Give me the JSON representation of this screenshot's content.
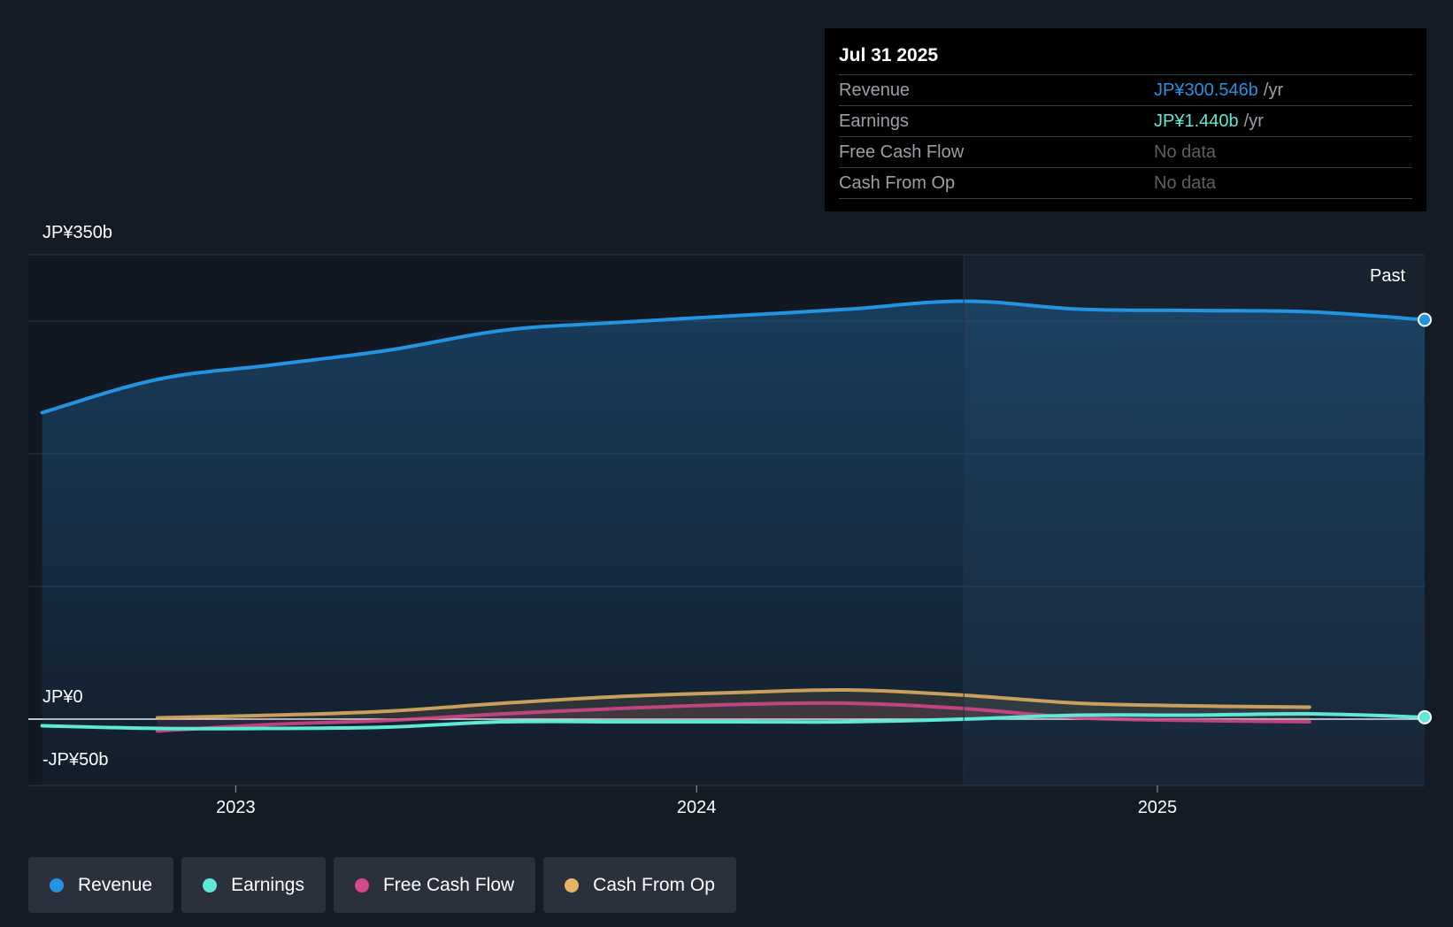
{
  "tooltip": {
    "date": "Jul 31 2025",
    "rows": [
      {
        "name": "Revenue",
        "value": "JP¥300.546b",
        "unit": "/yr",
        "color": "#2394df"
      },
      {
        "name": "Earnings",
        "value": "JP¥1.440b",
        "unit": "/yr",
        "color": "#5ee8d5"
      },
      {
        "name": "Free Cash Flow",
        "value": "No data",
        "unit": "",
        "color": "#5b6066"
      },
      {
        "name": "Cash From Op",
        "value": "No data",
        "unit": "",
        "color": "#5b6066"
      }
    ]
  },
  "past_label": "Past",
  "chart_data": {
    "type": "area",
    "title": "",
    "xlabel": "",
    "ylabel": "",
    "ylim": [
      -50,
      350
    ],
    "y_tick_labels": [
      {
        "value": 350,
        "label": "JP¥350b"
      },
      {
        "value": 0,
        "label": "JP¥0"
      },
      {
        "value": -50,
        "label": "-JP¥50b"
      }
    ],
    "gridlines": [
      350,
      300,
      200,
      100,
      0,
      -50
    ],
    "xlim": [
      2022.55,
      2025.58
    ],
    "x_ticks": [
      {
        "value": 2023.0,
        "label": "2023"
      },
      {
        "value": 2024.0,
        "label": "2024"
      },
      {
        "value": 2025.0,
        "label": "2025"
      }
    ],
    "past_start": 2024.58,
    "series": [
      {
        "name": "Revenue",
        "color": "#2394df",
        "fill": true,
        "end_marker": true,
        "x": [
          2022.58,
          2022.83,
          2023.08,
          2023.33,
          2023.58,
          2023.83,
          2024.08,
          2024.33,
          2024.58,
          2024.83,
          2025.08,
          2025.33,
          2025.58
        ],
        "y": [
          231,
          256,
          267,
          278,
          293,
          299,
          304,
          309,
          315,
          309,
          308,
          307,
          301
        ]
      },
      {
        "name": "Earnings",
        "color": "#5ee8d5",
        "fill": false,
        "end_marker": true,
        "x": [
          2022.58,
          2022.83,
          2023.08,
          2023.33,
          2023.58,
          2023.83,
          2024.08,
          2024.33,
          2024.58,
          2024.83,
          2025.08,
          2025.33,
          2025.58
        ],
        "y": [
          -5,
          -7,
          -7,
          -6,
          -2,
          -2,
          -2,
          -2,
          0,
          3,
          3,
          4,
          1.4
        ]
      },
      {
        "name": "Free Cash Flow",
        "color": "#d6498a",
        "fill": false,
        "end_marker": false,
        "x": [
          2022.83,
          2023.08,
          2023.33,
          2023.58,
          2023.83,
          2024.08,
          2024.33,
          2024.58,
          2024.83,
          2025.08,
          2025.33
        ],
        "y": [
          -9,
          -4,
          -1,
          4,
          8,
          11,
          12,
          8,
          1,
          -1,
          -2
        ]
      },
      {
        "name": "Cash From Op",
        "color": "#e8b464",
        "fill": false,
        "end_marker": false,
        "x": [
          2022.83,
          2023.08,
          2023.33,
          2023.58,
          2023.83,
          2024.08,
          2024.33,
          2024.58,
          2024.83,
          2025.08,
          2025.33
        ],
        "y": [
          1,
          3,
          6,
          12,
          17,
          20,
          22,
          18,
          12,
          10,
          9
        ]
      }
    ]
  },
  "legend": [
    {
      "label": "Revenue",
      "color": "#2394df"
    },
    {
      "label": "Earnings",
      "color": "#5ee8d5"
    },
    {
      "label": "Free Cash Flow",
      "color": "#d6498a"
    },
    {
      "label": "Cash From Op",
      "color": "#e8b464"
    }
  ]
}
